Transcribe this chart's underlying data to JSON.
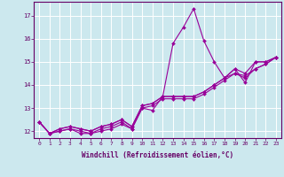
{
  "xlabel": "Windchill (Refroidissement éolien,°C)",
  "bg_color": "#cce8ee",
  "line_color": "#990099",
  "grid_color": "#ffffff",
  "axis_color": "#660066",
  "text_color": "#660066",
  "xlim": [
    -0.5,
    23.5
  ],
  "ylim": [
    11.7,
    17.6
  ],
  "xticks": [
    0,
    1,
    2,
    3,
    4,
    5,
    6,
    7,
    8,
    9,
    10,
    11,
    12,
    13,
    14,
    15,
    16,
    17,
    18,
    19,
    20,
    21,
    22,
    23
  ],
  "yticks": [
    12,
    13,
    14,
    15,
    16,
    17
  ],
  "series": [
    [
      12.4,
      11.9,
      12.0,
      12.1,
      11.9,
      11.9,
      12.0,
      12.1,
      12.3,
      12.1,
      13.0,
      12.9,
      13.5,
      15.8,
      16.5,
      17.3,
      15.9,
      15.0,
      14.3,
      14.7,
      14.1,
      15.0,
      15.0,
      15.2
    ],
    [
      12.4,
      11.9,
      12.1,
      12.2,
      12.1,
      12.0,
      12.2,
      12.3,
      12.5,
      12.2,
      13.1,
      13.2,
      13.5,
      13.5,
      13.5,
      13.5,
      13.7,
      14.0,
      14.3,
      14.7,
      14.5,
      15.0,
      15.0,
      15.2
    ],
    [
      12.4,
      11.9,
      12.1,
      12.2,
      12.1,
      12.0,
      12.2,
      12.3,
      12.5,
      12.2,
      13.1,
      13.2,
      13.5,
      13.5,
      13.5,
      13.5,
      13.7,
      14.0,
      14.3,
      14.5,
      14.4,
      14.7,
      14.9,
      15.2
    ],
    [
      12.4,
      11.9,
      12.0,
      12.1,
      12.0,
      11.9,
      12.1,
      12.2,
      12.4,
      12.1,
      13.0,
      13.1,
      13.4,
      13.4,
      13.4,
      13.4,
      13.6,
      13.9,
      14.2,
      14.5,
      14.3,
      14.7,
      14.9,
      15.2
    ]
  ],
  "marker": "D",
  "markersize": 2.0,
  "linewidth": 0.8,
  "tick_fontsize": 4.5,
  "xlabel_fontsize": 5.5
}
